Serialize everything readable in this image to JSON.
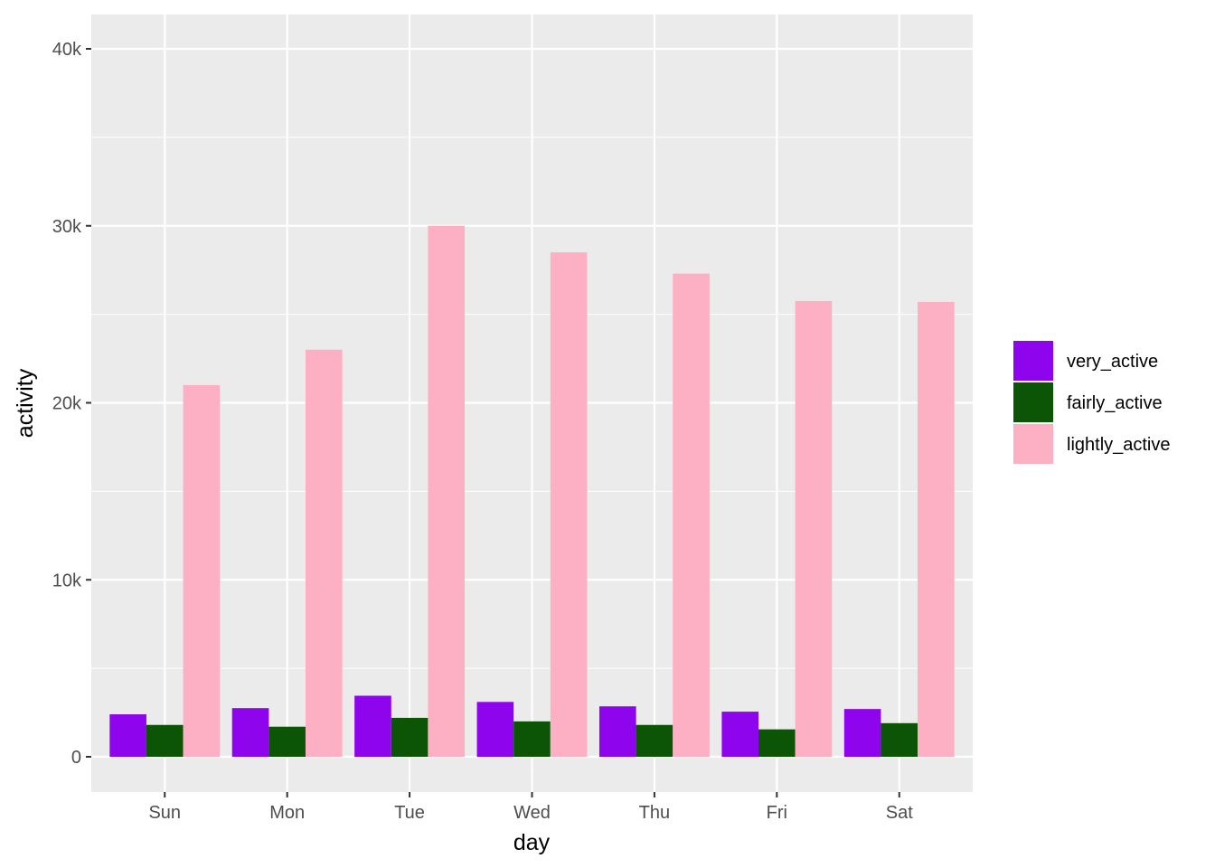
{
  "chart_data": {
    "type": "bar",
    "xlabel": "day",
    "ylabel": "activity",
    "categories": [
      "Sun",
      "Mon",
      "Tue",
      "Wed",
      "Thu",
      "Fri",
      "Sat"
    ],
    "series": [
      {
        "name": "very_active",
        "color": "#8E04EC",
        "values": [
          2400,
          2750,
          3450,
          3100,
          2850,
          2550,
          2700
        ]
      },
      {
        "name": "fairly_active",
        "color": "#0C5506",
        "values": [
          1800,
          1700,
          2200,
          2000,
          1800,
          1550,
          1900
        ]
      },
      {
        "name": "lightly_active",
        "color": "#FDB0C3",
        "values": [
          21000,
          23000,
          30000,
          28500,
          27300,
          25750,
          25700
        ]
      }
    ],
    "y_ticks": [
      {
        "value": 0,
        "label": "0"
      },
      {
        "value": 10000,
        "label": "10k"
      },
      {
        "value": 20000,
        "label": "20k"
      },
      {
        "value": 30000,
        "label": "30k"
      },
      {
        "value": 40000,
        "label": "40k"
      }
    ],
    "ylim": [
      -2000,
      42000
    ],
    "grid": true,
    "legend_position": "right",
    "colors": {
      "panel_background": "#EBEBEB",
      "grid": "#FFFFFF",
      "tick": "#333333"
    }
  }
}
